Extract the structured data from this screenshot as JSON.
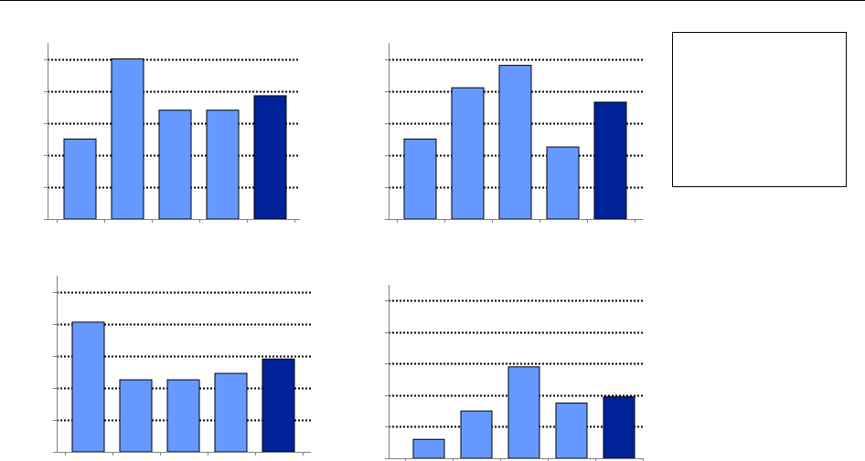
{
  "colors": {
    "bar": "#6699FF",
    "highlight": "#002299",
    "axis": "#808080",
    "grid": "#000000"
  },
  "legend": {
    "entries": []
  },
  "chart_data": [
    {
      "type": "bar",
      "title": "",
      "xlabel": "",
      "ylabel": "",
      "categories": [
        "",
        "",
        "",
        "",
        ""
      ],
      "values": [
        2.5,
        5,
        3.4,
        3.4,
        3.85
      ],
      "highlight_index": 4,
      "ylim": [
        0,
        5.5
      ],
      "gridlines": [
        1,
        2,
        3,
        4,
        5
      ],
      "grid": true
    },
    {
      "type": "bar",
      "title": "",
      "xlabel": "",
      "ylabel": "",
      "categories": [
        "",
        "",
        "",
        "",
        ""
      ],
      "values": [
        2.5,
        4.1,
        4.8,
        2.25,
        3.65
      ],
      "highlight_index": 4,
      "ylim": [
        0,
        5.5
      ],
      "gridlines": [
        1,
        2,
        3,
        4,
        5
      ],
      "grid": true
    },
    {
      "type": "bar",
      "title": "",
      "xlabel": "",
      "ylabel": "",
      "categories": [
        "",
        "",
        "",
        "",
        ""
      ],
      "values": [
        4.05,
        2.25,
        2.25,
        2.45,
        2.9
      ],
      "highlight_index": 4,
      "ylim": [
        0,
        5.5
      ],
      "gridlines": [
        1,
        2,
        3,
        4,
        5
      ],
      "grid": true
    },
    {
      "type": "bar",
      "title": "",
      "xlabel": "",
      "ylabel": "",
      "categories": [
        "",
        "",
        "",
        "",
        ""
      ],
      "values": [
        0.6,
        1.5,
        2.9,
        1.75,
        1.95
      ],
      "highlight_index": 4,
      "ylim": [
        0,
        5.5
      ],
      "gridlines": [
        1,
        2,
        3,
        4,
        5
      ],
      "grid": true
    }
  ]
}
